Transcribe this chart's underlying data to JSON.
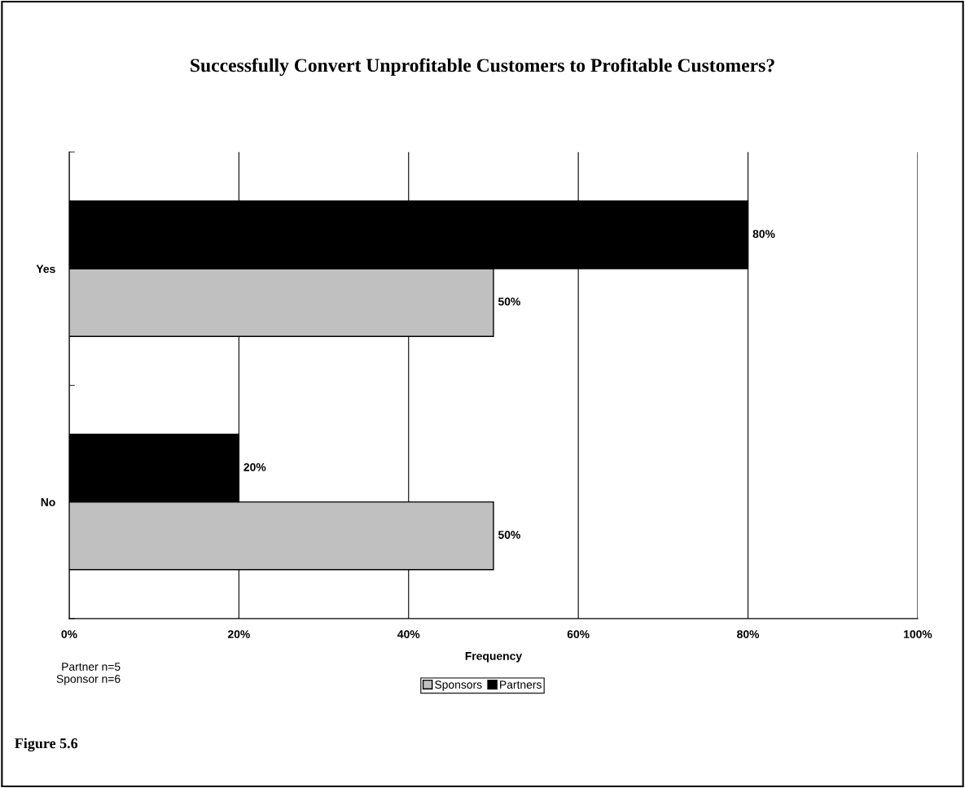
{
  "chart_data": {
    "type": "bar",
    "orientation": "horizontal",
    "title": "Successfully Convert Unprofitable Customers to Profitable Customers?",
    "xlabel": "Frequency",
    "categories": [
      "Yes",
      "No"
    ],
    "series": [
      {
        "name": "Sponsors",
        "color": "#c0c0c0",
        "values": [
          50,
          50
        ],
        "value_labels": [
          "50%",
          "50%"
        ]
      },
      {
        "name": "Partners",
        "color": "#000000",
        "values": [
          80,
          20
        ],
        "value_labels": [
          "80%",
          "20%"
        ]
      }
    ],
    "xlim": [
      0,
      100
    ],
    "xticks": [
      {
        "value": 0,
        "label": "0%"
      },
      {
        "value": 20,
        "label": "20%"
      },
      {
        "value": 40,
        "label": "40%"
      },
      {
        "value": 60,
        "label": "60%"
      },
      {
        "value": 80,
        "label": "80%"
      },
      {
        "value": 100,
        "label": "100%"
      }
    ],
    "grid": "x",
    "legend": "bottom",
    "annotations": [
      "Partner n=5\nSponsor n=6",
      "Figure 5.6"
    ]
  }
}
